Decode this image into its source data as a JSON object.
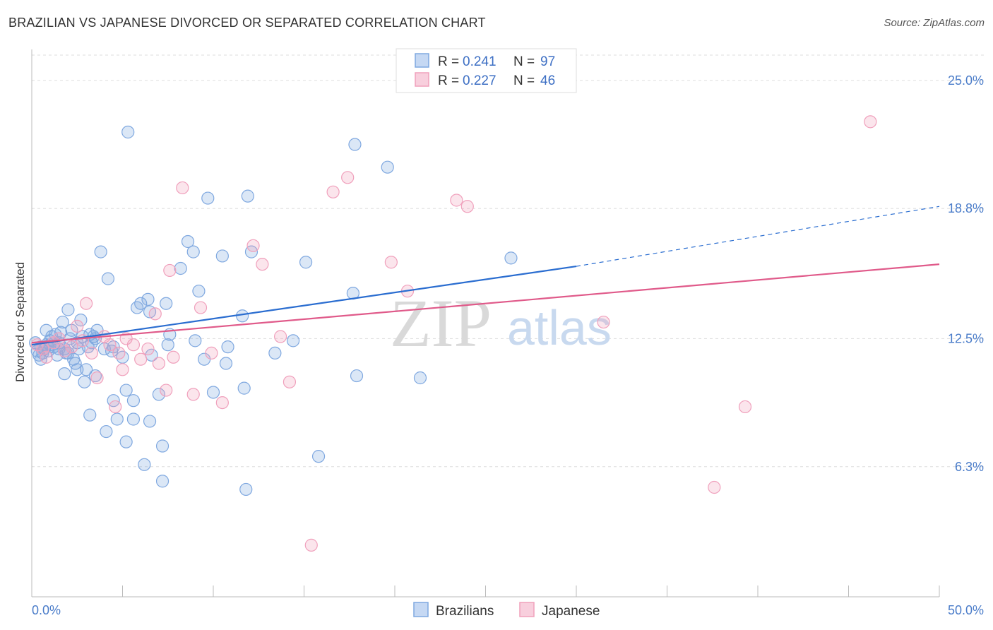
{
  "title": "BRAZILIAN VS JAPANESE DIVORCED OR SEPARATED CORRELATION CHART",
  "source": "Source: ZipAtlas.com",
  "watermark": {
    "zip": "ZIP",
    "atlas": "atlas"
  },
  "legend": {
    "r_label": "R =",
    "n_label": "N =",
    "rows": [
      {
        "series": "Brazilians",
        "r": "0.241",
        "n": "97",
        "color": "#7fa8e0"
      },
      {
        "series": "Japanese",
        "r": "0.227",
        "n": "46",
        "color": "#f0a0bc"
      }
    ]
  },
  "chart_data": {
    "type": "scatter",
    "title": "BRAZILIAN VS JAPANESE DIVORCED OR SEPARATED CORRELATION CHART",
    "xlabel": "",
    "ylabel": "Divorced or Separated",
    "xlim": [
      0,
      50
    ],
    "ylim": [
      0,
      26.5
    ],
    "x_tick_labels": [
      {
        "value": 0,
        "label": "0.0%"
      },
      {
        "value": 50,
        "label": "50.0%"
      }
    ],
    "y_tick_labels": [
      {
        "value": 6.3,
        "label": "6.3%"
      },
      {
        "value": 12.5,
        "label": "12.5%"
      },
      {
        "value": 18.8,
        "label": "18.8%"
      },
      {
        "value": 25.0,
        "label": "25.0%"
      }
    ],
    "grid": true,
    "legend_position": "top-center",
    "series": [
      {
        "name": "Brazilians",
        "color": "#7fa8e0",
        "line_color": "#2a6dd0",
        "trend": {
          "x": [
            0,
            30
          ],
          "y": [
            12.2,
            16.0
          ],
          "dashed_to": [
            50,
            18.9
          ]
        },
        "points": [
          [
            0.2,
            12.3
          ],
          [
            0.3,
            11.9
          ],
          [
            0.4,
            11.7
          ],
          [
            0.5,
            12.1
          ],
          [
            0.6,
            11.8
          ],
          [
            0.7,
            12.0
          ],
          [
            0.8,
            12.2
          ],
          [
            0.9,
            11.9
          ],
          [
            1.0,
            12.4
          ],
          [
            1.1,
            12.6
          ],
          [
            1.2,
            12.1
          ],
          [
            1.3,
            12.7
          ],
          [
            1.4,
            11.7
          ],
          [
            1.5,
            12.3
          ],
          [
            1.6,
            12.8
          ],
          [
            1.7,
            13.3
          ],
          [
            1.8,
            12.0
          ],
          [
            1.9,
            11.8
          ],
          [
            2.0,
            13.9
          ],
          [
            2.1,
            12.5
          ],
          [
            2.2,
            12.9
          ],
          [
            2.3,
            11.5
          ],
          [
            2.4,
            11.3
          ],
          [
            2.5,
            12.3
          ],
          [
            2.6,
            12.0
          ],
          [
            2.7,
            13.4
          ],
          [
            2.8,
            12.6
          ],
          [
            2.9,
            10.4
          ],
          [
            3.1,
            12.1
          ],
          [
            3.2,
            12.7
          ],
          [
            3.3,
            12.3
          ],
          [
            3.4,
            12.6
          ],
          [
            3.5,
            10.7
          ],
          [
            3.6,
            12.9
          ],
          [
            3.8,
            16.7
          ],
          [
            4.0,
            12.0
          ],
          [
            4.2,
            15.4
          ],
          [
            4.4,
            11.9
          ],
          [
            4.5,
            9.5
          ],
          [
            4.7,
            8.6
          ],
          [
            5.0,
            11.6
          ],
          [
            5.2,
            7.5
          ],
          [
            5.3,
            22.5
          ],
          [
            5.6,
            8.6
          ],
          [
            5.8,
            14.0
          ],
          [
            6.0,
            14.2
          ],
          [
            6.2,
            6.4
          ],
          [
            6.4,
            14.4
          ],
          [
            6.5,
            13.8
          ],
          [
            6.6,
            11.7
          ],
          [
            7.0,
            9.8
          ],
          [
            7.2,
            7.3
          ],
          [
            7.4,
            14.2
          ],
          [
            7.5,
            12.2
          ],
          [
            7.6,
            12.7
          ],
          [
            8.2,
            15.9
          ],
          [
            8.6,
            17.2
          ],
          [
            8.9,
            16.7
          ],
          [
            9.0,
            12.4
          ],
          [
            9.2,
            14.8
          ],
          [
            9.5,
            11.5
          ],
          [
            9.7,
            19.3
          ],
          [
            10.0,
            9.9
          ],
          [
            10.5,
            16.5
          ],
          [
            10.7,
            11.3
          ],
          [
            10.8,
            12.1
          ],
          [
            11.6,
            13.6
          ],
          [
            11.7,
            10.1
          ],
          [
            11.8,
            5.2
          ],
          [
            11.9,
            19.4
          ],
          [
            12.1,
            16.7
          ],
          [
            13.4,
            11.8
          ],
          [
            14.4,
            12.4
          ],
          [
            15.1,
            16.2
          ],
          [
            15.8,
            6.8
          ],
          [
            17.7,
            14.7
          ],
          [
            17.8,
            21.9
          ],
          [
            17.9,
            10.7
          ],
          [
            19.6,
            20.8
          ],
          [
            21.4,
            10.6
          ],
          [
            26.4,
            16.4
          ],
          [
            1.5,
            12.0
          ],
          [
            2.5,
            11.0
          ],
          [
            3.0,
            11.0
          ],
          [
            3.5,
            12.5
          ],
          [
            4.5,
            12.1
          ],
          [
            5.2,
            10.0
          ],
          [
            5.6,
            9.5
          ],
          [
            6.5,
            8.5
          ],
          [
            7.2,
            5.6
          ],
          [
            1.8,
            10.8
          ],
          [
            3.2,
            8.8
          ],
          [
            4.1,
            8.0
          ],
          [
            0.5,
            11.5
          ],
          [
            1.0,
            12.2
          ],
          [
            0.8,
            12.9
          ],
          [
            2.0,
            11.8
          ]
        ]
      },
      {
        "name": "Japanese",
        "color": "#f0a0bc",
        "line_color": "#e05a8a",
        "trend": {
          "x": [
            0,
            50
          ],
          "y": [
            12.3,
            16.1
          ]
        },
        "points": [
          [
            0.3,
            12.2
          ],
          [
            0.6,
            12.0
          ],
          [
            0.8,
            11.6
          ],
          [
            1.2,
            12.3
          ],
          [
            1.5,
            12.5
          ],
          [
            1.8,
            11.9
          ],
          [
            2.2,
            12.1
          ],
          [
            2.5,
            13.1
          ],
          [
            2.8,
            12.4
          ],
          [
            3.0,
            14.2
          ],
          [
            3.3,
            11.8
          ],
          [
            3.6,
            10.6
          ],
          [
            4.0,
            12.6
          ],
          [
            4.3,
            12.2
          ],
          [
            4.6,
            9.2
          ],
          [
            4.8,
            11.8
          ],
          [
            5.0,
            11.0
          ],
          [
            5.2,
            12.5
          ],
          [
            5.6,
            12.2
          ],
          [
            6.0,
            11.5
          ],
          [
            6.4,
            12.0
          ],
          [
            6.8,
            13.7
          ],
          [
            7.0,
            11.3
          ],
          [
            7.4,
            10.0
          ],
          [
            7.6,
            15.8
          ],
          [
            7.8,
            11.6
          ],
          [
            8.3,
            19.8
          ],
          [
            8.9,
            9.8
          ],
          [
            9.3,
            14.0
          ],
          [
            9.9,
            11.8
          ],
          [
            10.5,
            9.4
          ],
          [
            12.2,
            17.0
          ],
          [
            12.7,
            16.1
          ],
          [
            13.7,
            12.6
          ],
          [
            14.2,
            10.4
          ],
          [
            15.4,
            2.5
          ],
          [
            16.6,
            19.6
          ],
          [
            17.4,
            20.3
          ],
          [
            19.8,
            16.2
          ],
          [
            20.7,
            14.8
          ],
          [
            23.4,
            19.2
          ],
          [
            24.0,
            18.9
          ],
          [
            31.5,
            13.3
          ],
          [
            37.6,
            5.3
          ],
          [
            39.3,
            9.2
          ],
          [
            46.2,
            23.0
          ]
        ]
      }
    ]
  }
}
